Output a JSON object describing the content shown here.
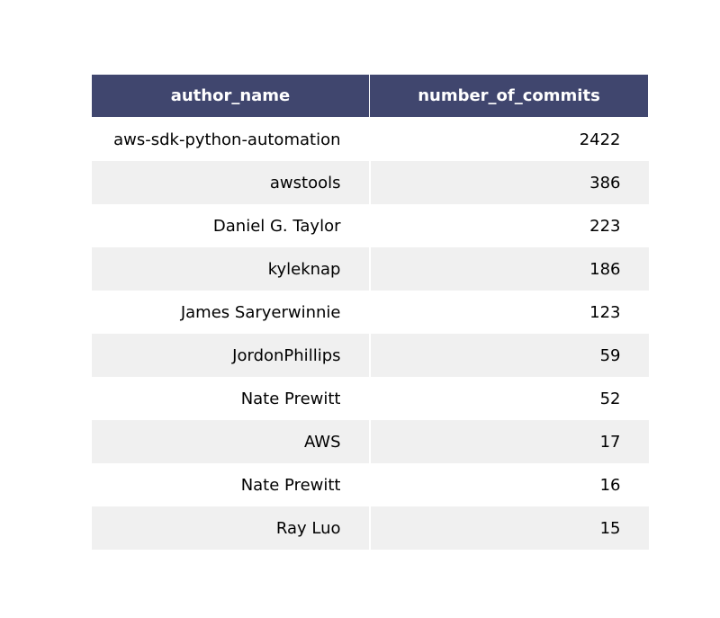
{
  "chart_data": {
    "type": "table",
    "columns": [
      "author_name",
      "number_of_commits"
    ],
    "rows": [
      [
        "aws-sdk-python-automation",
        "2422"
      ],
      [
        "awstools",
        "386"
      ],
      [
        "Daniel G. Taylor",
        "223"
      ],
      [
        "kyleknap",
        "186"
      ],
      [
        "James Saryerwinnie",
        "123"
      ],
      [
        "JordonPhillips",
        "59"
      ],
      [
        "Nate Prewitt",
        "52"
      ],
      [
        "AWS",
        "17"
      ],
      [
        "Nate Prewitt",
        "16"
      ],
      [
        "Ray Luo",
        "15"
      ]
    ]
  },
  "colors": {
    "header_bg": "#40466e",
    "header_text": "#ffffff",
    "row_alt_bg": "#f0f0f0",
    "row_bg": "#ffffff"
  }
}
